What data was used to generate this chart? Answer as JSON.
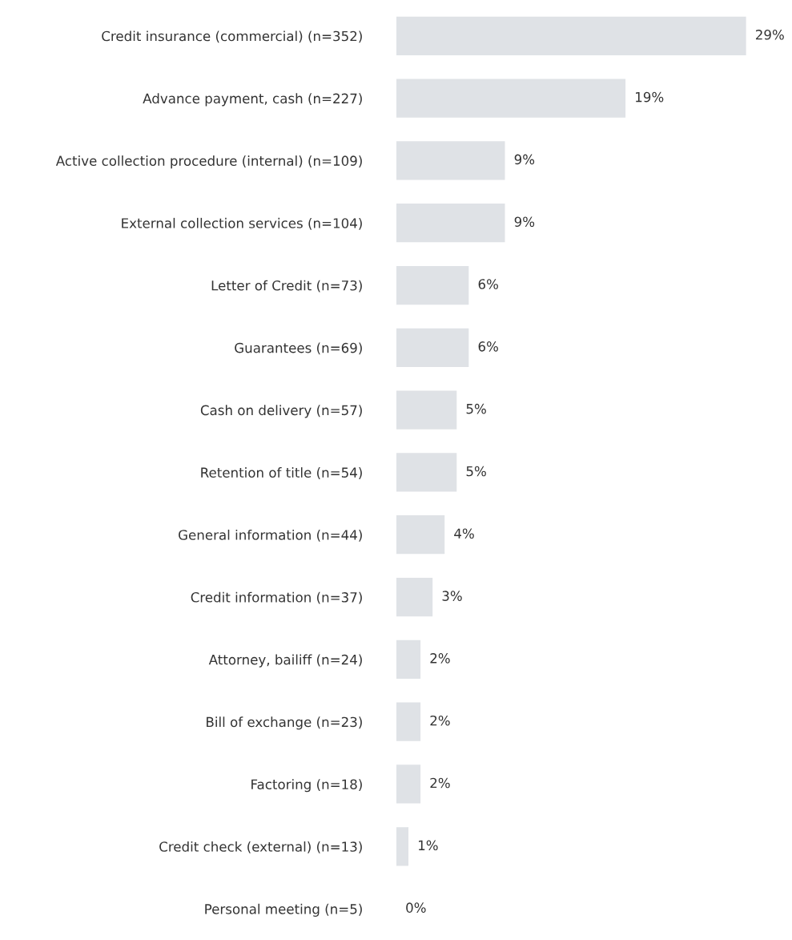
{
  "chart_data": {
    "type": "bar",
    "orientation": "horizontal",
    "categories": [
      "Credit insurance (commercial) (n=352)",
      "Advance payment, cash (n=227)",
      "Active collection procedure (internal) (n=109)",
      "External collection services (n=104)",
      "Letter of Credit (n=73)",
      "Guarantees (n=69)",
      "Cash on delivery (n=57)",
      "Retention of title (n=54)",
      "General information (n=44)",
      "Credit information (n=37)",
      "Attorney, bailiff (n=24)",
      "Bill of exchange (n=23)",
      "Factoring (n=18)",
      "Credit check (external) (n=13)",
      "Personal meeting (n=5)"
    ],
    "values": [
      29,
      19,
      9,
      9,
      6,
      6,
      5,
      5,
      4,
      3,
      2,
      2,
      2,
      1,
      0
    ],
    "value_labels": [
      "29%",
      "19%",
      "9%",
      "9%",
      "6%",
      "6%",
      "5%",
      "5%",
      "4%",
      "3%",
      "2%",
      "2%",
      "2%",
      "1%",
      "0%"
    ],
    "color": "#dfe2e6",
    "grid": false,
    "legend": false
  }
}
